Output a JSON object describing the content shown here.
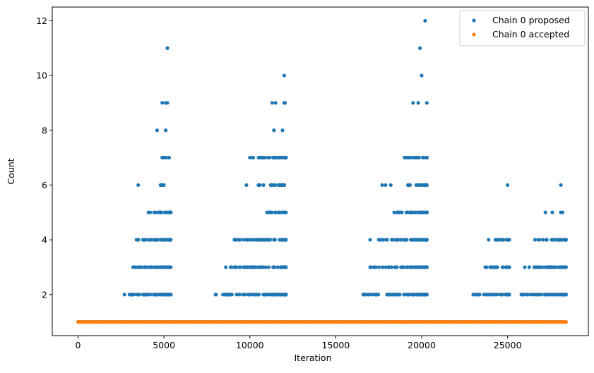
{
  "chart_data": {
    "type": "scatter",
    "title": "",
    "xlabel": "Iteration",
    "ylabel": "Count",
    "xlim": [
      -1500,
      29700
    ],
    "ylim": [
      0.5,
      12.5
    ],
    "x_ticks": [
      0,
      5000,
      10000,
      15000,
      20000,
      25000
    ],
    "y_ticks": [
      2,
      4,
      6,
      8,
      10,
      12
    ],
    "grid": false,
    "legend_position": "top-right",
    "series": [
      {
        "name": "Chain 0 proposed",
        "color": "#1f77b4",
        "baseline": {
          "y": 1,
          "x_from": 0,
          "x_to": 28400
        },
        "bands": [
          {
            "y": 2,
            "ranges": [
              [
                2700,
                5400
              ],
              [
                8000,
                12100
              ],
              [
                16600,
                20300
              ],
              [
                23000,
                25100
              ],
              [
                25800,
                28400
              ]
            ]
          },
          {
            "y": 3,
            "ranges": [
              [
                3200,
                5400
              ],
              [
                8600,
                12100
              ],
              [
                17000,
                20300
              ],
              [
                23700,
                25100
              ],
              [
                26000,
                28400
              ]
            ]
          },
          {
            "y": 4,
            "ranges": [
              [
                3400,
                5400
              ],
              [
                9100,
                12100
              ],
              [
                17500,
                20300
              ],
              [
                24300,
                25100
              ],
              [
                26800,
                28400
              ]
            ]
          },
          {
            "y": 5,
            "ranges": [
              [
                4200,
                5400
              ],
              [
                11000,
                12100
              ],
              [
                18400,
                20300
              ]
            ]
          },
          {
            "y": 6,
            "ranges": [
              [
                4800,
                5000
              ],
              [
                10500,
                12000
              ],
              [
                19200,
                20300
              ]
            ]
          },
          {
            "y": 7,
            "ranges": [
              [
                4900,
                5300
              ],
              [
                10000,
                12100
              ],
              [
                19000,
                20300
              ]
            ]
          }
        ],
        "points": [
          {
            "x": 3450,
            "y": 4
          },
          {
            "x": 3500,
            "y": 6
          },
          {
            "x": 4100,
            "y": 5
          },
          {
            "x": 4600,
            "y": 8
          },
          {
            "x": 5100,
            "y": 8
          },
          {
            "x": 4900,
            "y": 9
          },
          {
            "x": 5100,
            "y": 9
          },
          {
            "x": 5200,
            "y": 9
          },
          {
            "x": 5200,
            "y": 11
          },
          {
            "x": 5300,
            "y": 7
          },
          {
            "x": 9800,
            "y": 6
          },
          {
            "x": 10200,
            "y": 7
          },
          {
            "x": 11400,
            "y": 8
          },
          {
            "x": 11900,
            "y": 8
          },
          {
            "x": 11300,
            "y": 9
          },
          {
            "x": 11500,
            "y": 9
          },
          {
            "x": 12000,
            "y": 9
          },
          {
            "x": 12050,
            "y": 9
          },
          {
            "x": 12000,
            "y": 10
          },
          {
            "x": 17000,
            "y": 4
          },
          {
            "x": 17700,
            "y": 6
          },
          {
            "x": 17900,
            "y": 6
          },
          {
            "x": 18200,
            "y": 6
          },
          {
            "x": 19500,
            "y": 9
          },
          {
            "x": 19800,
            "y": 9
          },
          {
            "x": 20300,
            "y": 9
          },
          {
            "x": 19900,
            "y": 11
          },
          {
            "x": 20000,
            "y": 10
          },
          {
            "x": 20200,
            "y": 12
          },
          {
            "x": 23900,
            "y": 4
          },
          {
            "x": 25000,
            "y": 6
          },
          {
            "x": 26600,
            "y": 4
          },
          {
            "x": 27200,
            "y": 5
          },
          {
            "x": 27600,
            "y": 5
          },
          {
            "x": 28100,
            "y": 5
          },
          {
            "x": 28200,
            "y": 5
          },
          {
            "x": 28100,
            "y": 6
          }
        ]
      },
      {
        "name": "Chain 0 accepted",
        "color": "#ff7f0e",
        "baseline": {
          "y": 1,
          "x_from": 0,
          "x_to": 28400
        },
        "bands": [],
        "points": []
      }
    ]
  }
}
